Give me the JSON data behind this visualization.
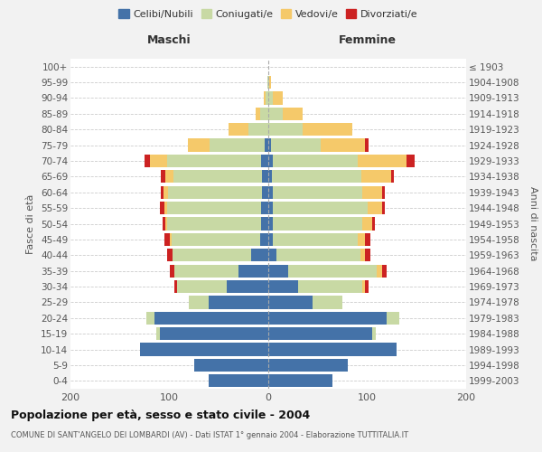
{
  "age_groups": [
    "0-4",
    "5-9",
    "10-14",
    "15-19",
    "20-24",
    "25-29",
    "30-34",
    "35-39",
    "40-44",
    "45-49",
    "50-54",
    "55-59",
    "60-64",
    "65-69",
    "70-74",
    "75-79",
    "80-84",
    "85-89",
    "90-94",
    "95-99",
    "100+"
  ],
  "birth_years": [
    "1999-2003",
    "1994-1998",
    "1989-1993",
    "1984-1988",
    "1979-1983",
    "1974-1978",
    "1969-1973",
    "1964-1968",
    "1959-1963",
    "1954-1958",
    "1949-1953",
    "1944-1948",
    "1939-1943",
    "1934-1938",
    "1929-1933",
    "1924-1928",
    "1919-1923",
    "1914-1918",
    "1909-1913",
    "1904-1908",
    "≤ 1903"
  ],
  "males": {
    "celibi": [
      60,
      75,
      130,
      110,
      115,
      60,
      42,
      30,
      17,
      8,
      7,
      7,
      6,
      6,
      7,
      4,
      0,
      0,
      0,
      0,
      0
    ],
    "coniugati": [
      0,
      0,
      0,
      3,
      8,
      20,
      50,
      65,
      80,
      90,
      95,
      95,
      95,
      90,
      95,
      55,
      20,
      8,
      3,
      1,
      0
    ],
    "vedovi": [
      0,
      0,
      0,
      0,
      0,
      0,
      0,
      0,
      0,
      2,
      2,
      3,
      5,
      8,
      18,
      22,
      20,
      5,
      2,
      0,
      0
    ],
    "divorziati": [
      0,
      0,
      0,
      0,
      0,
      0,
      3,
      5,
      5,
      5,
      3,
      5,
      3,
      5,
      5,
      0,
      0,
      0,
      0,
      0,
      0
    ]
  },
  "females": {
    "nubili": [
      65,
      80,
      130,
      105,
      120,
      45,
      30,
      20,
      8,
      5,
      5,
      5,
      5,
      4,
      5,
      3,
      0,
      0,
      0,
      0,
      0
    ],
    "coniugate": [
      0,
      0,
      0,
      4,
      12,
      30,
      65,
      90,
      85,
      85,
      90,
      95,
      90,
      90,
      85,
      50,
      35,
      15,
      5,
      1,
      0
    ],
    "vedove": [
      0,
      0,
      0,
      0,
      0,
      0,
      3,
      5,
      5,
      8,
      10,
      15,
      20,
      30,
      50,
      45,
      50,
      20,
      10,
      2,
      0
    ],
    "divorziate": [
      0,
      0,
      0,
      0,
      0,
      0,
      3,
      5,
      5,
      5,
      3,
      3,
      3,
      3,
      8,
      3,
      0,
      0,
      0,
      0,
      0
    ]
  },
  "colors": {
    "celibi": "#4472a8",
    "coniugati": "#c8d9a4",
    "vedovi": "#f5c96a",
    "divorziati": "#cc2222"
  },
  "xlim": 200,
  "title": "Popolazione per età, sesso e stato civile - 2004",
  "subtitle": "COMUNE DI SANT'ANGELO DEI LOMBARDI (AV) - Dati ISTAT 1° gennaio 2004 - Elaborazione TUTTITALIA.IT",
  "ylabel_left": "Fasce di età",
  "ylabel_right": "Anni di nascita",
  "xlabel_left": "Maschi",
  "xlabel_right": "Femmine",
  "bg_color": "#f2f2f2",
  "plot_bg": "#ffffff"
}
